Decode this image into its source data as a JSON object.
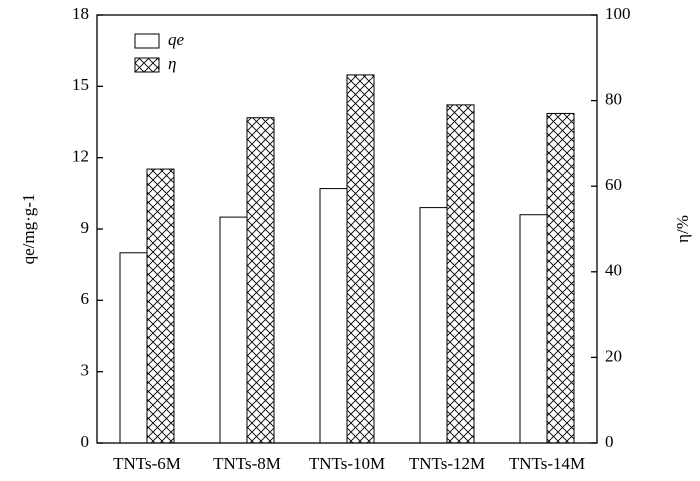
{
  "chart_data": {
    "type": "bar",
    "categories": [
      "TNTs-6M",
      "TNTs-8M",
      "TNTs-10M",
      "TNTs-12M",
      "TNTs-14M"
    ],
    "series": [
      {
        "name": "qe",
        "color": "#ffffff",
        "values": [
          8.0,
          9.5,
          10.7,
          9.9,
          9.6
        ]
      },
      {
        "name": "η",
        "color": "#ffffff",
        "pattern": "crosshatch",
        "axis": "y2",
        "values": [
          64,
          76,
          86,
          79,
          77
        ]
      }
    ],
    "y_label": "qe/mg·g-1",
    "y2_label": "η/%",
    "ylim": [
      0,
      18
    ],
    "yticks": [
      0,
      3,
      6,
      9,
      12,
      15,
      18
    ],
    "y2lim": [
      0,
      100
    ],
    "y2ticks": [
      0,
      20,
      40,
      60,
      80,
      100
    ],
    "legend": "upper-left",
    "grid": false
  }
}
